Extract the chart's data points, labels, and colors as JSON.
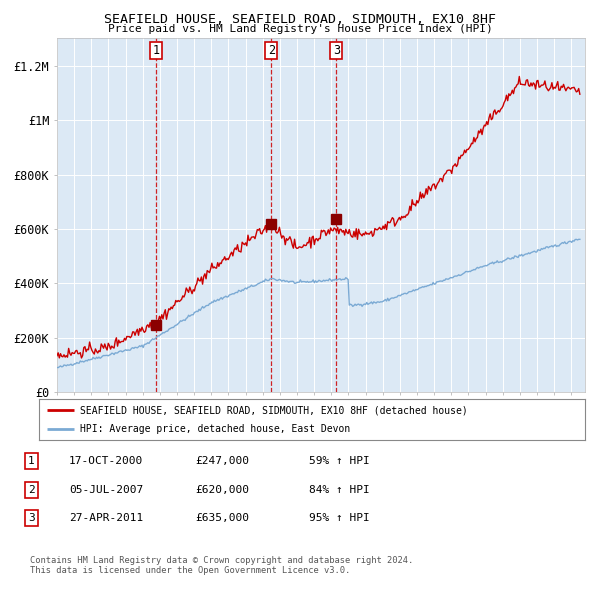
{
  "title": "SEAFIELD HOUSE, SEAFIELD ROAD, SIDMOUTH, EX10 8HF",
  "subtitle": "Price paid vs. HM Land Registry's House Price Index (HPI)",
  "legend_line1": "SEAFIELD HOUSE, SEAFIELD ROAD, SIDMOUTH, EX10 8HF (detached house)",
  "legend_line2": "HPI: Average price, detached house, East Devon",
  "footer": "Contains HM Land Registry data © Crown copyright and database right 2024.\nThis data is licensed under the Open Government Licence v3.0.",
  "sale_dates": [
    "17-OCT-2000",
    "05-JUL-2007",
    "27-APR-2011"
  ],
  "sale_prices": [
    247000,
    620000,
    635000
  ],
  "sale_hpi_pct": [
    "59%",
    "84%",
    "95%"
  ],
  "sale_labels": [
    "1",
    "2",
    "3"
  ],
  "hpi_color": "#7baad4",
  "price_color": "#cc0000",
  "sale_marker_color": "#8b0000",
  "dashed_line_color": "#cc0000",
  "plot_bg_color": "#dce9f5",
  "ylim": [
    0,
    1300000
  ],
  "yticks": [
    0,
    200000,
    400000,
    600000,
    800000,
    1000000,
    1200000
  ],
  "ytick_labels": [
    "£0",
    "£200K",
    "£400K",
    "£600K",
    "£800K",
    "£1M",
    "£1.2M"
  ],
  "xstart_year": 1995,
  "xend_year": 2025,
  "table_rows": [
    [
      "1",
      "17-OCT-2000",
      "£247,000",
      "59% ↑ HPI"
    ],
    [
      "2",
      "05-JUL-2007",
      "£620,000",
      "84% ↑ HPI"
    ],
    [
      "3",
      "27-APR-2011",
      "£635,000",
      "95% ↑ HPI"
    ]
  ]
}
